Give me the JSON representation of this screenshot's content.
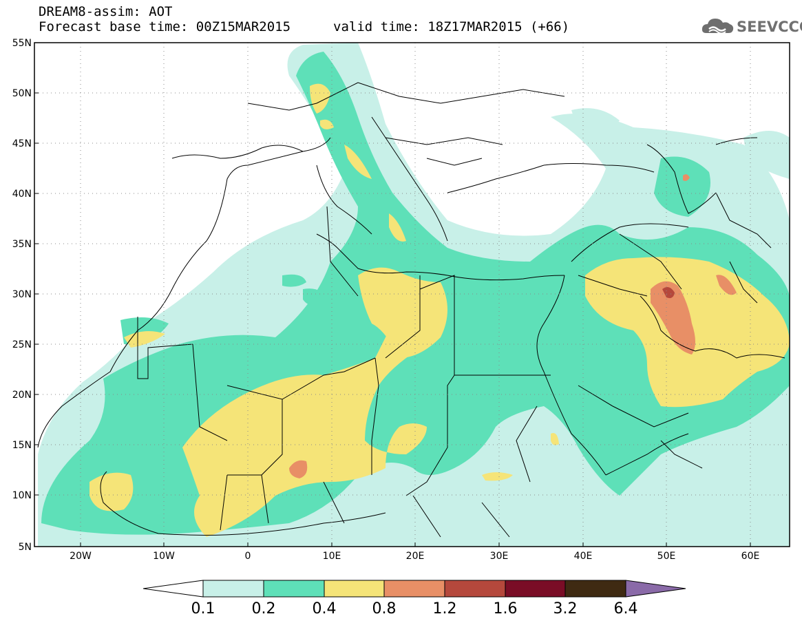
{
  "header": {
    "title_line1": "DREAM8-assim: AOT",
    "title_line2": "Forecast base time: 00Z15MAR2015",
    "valid_time": "valid time: 18Z17MAR2015 (+66)",
    "logo_text": "SEEVCCC"
  },
  "map": {
    "variable": "AOT",
    "lon_range": [
      -25,
      65
    ],
    "lat_range": [
      5,
      55
    ],
    "lat_ticks": [
      "55N",
      "50N",
      "45N",
      "40N",
      "35N",
      "30N",
      "25N",
      "20N",
      "15N",
      "10N",
      "5N"
    ],
    "lon_ticks": [
      "20W",
      "10W",
      "0",
      "10E",
      "20E",
      "30E",
      "40E",
      "50E",
      "60E"
    ],
    "grid": "dotted"
  },
  "colorbar": {
    "labels": [
      "0.1",
      "0.2",
      "0.4",
      "0.8",
      "1.2",
      "1.6",
      "3.2",
      "6.4"
    ],
    "colors": [
      "#ffffff",
      "#c8f0e8",
      "#5ee0b8",
      "#f5e478",
      "#e88f66",
      "#b5483c",
      "#7a0d26",
      "#3f2a12",
      "#8a6aa8"
    ]
  }
}
